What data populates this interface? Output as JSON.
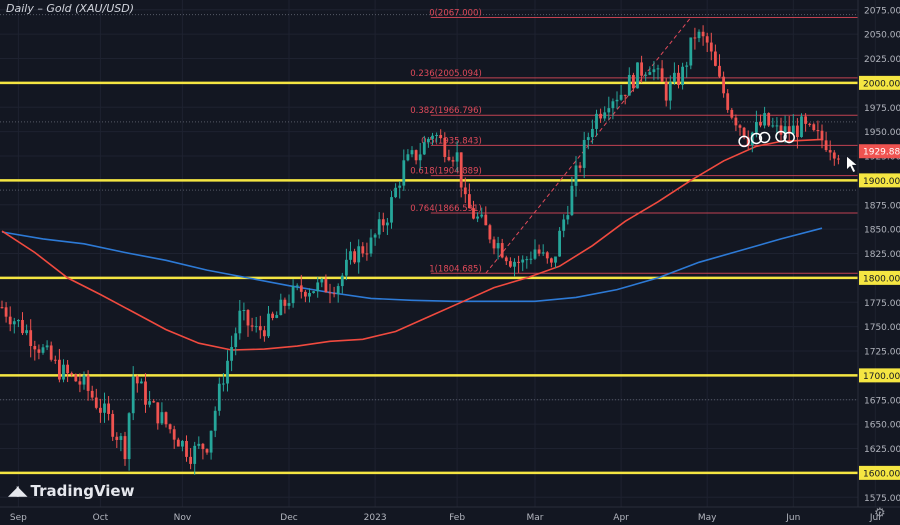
{
  "header": {
    "title": "Daily – Gold (XAU/USD)"
  },
  "branding": {
    "name": "TradingView",
    "icon": "tradingview-logo-icon"
  },
  "settings_icon": "gear-icon",
  "colors": {
    "background": "#131722",
    "up_candle": "#26a69a",
    "down_candle": "#ef5350",
    "yellow_level": "#f5e642",
    "fib": "#e04a5a",
    "ma_red": "#f04a3f",
    "ma_blue": "#2d7ad6",
    "axis_text": "#b2b5be"
  },
  "chart_data": {
    "type": "candlestick",
    "instrument": "Daily – Gold (XAU/USD)",
    "ylim": [
      1565,
      2085
    ],
    "y_ticks": [
      1575,
      1600,
      1625,
      1650,
      1675,
      1700,
      1725,
      1750,
      1775,
      1800,
      1825,
      1850,
      1875,
      1900,
      1925,
      1950,
      1975,
      2000,
      2025,
      2050,
      2075
    ],
    "y_tick_labels": [
      "1575.000",
      "1600.000",
      "1625.000",
      "1650.000",
      "1675.000",
      "1700.000",
      "1725.000",
      "1750.000",
      "1775.000",
      "1800.000",
      "1825.000",
      "1850.000",
      "1875.000",
      "1900.000",
      "1925.000",
      "1950.000",
      "1975.000",
      "2000.000",
      "2025.000",
      "2050.000",
      "2075.000"
    ],
    "x_tick_labels": [
      "Sep",
      "Oct",
      "Nov",
      "Dec",
      "2023",
      "Feb",
      "Mar",
      "Apr",
      "May",
      "Jun",
      "Jul"
    ],
    "x_tick_index": [
      4,
      24,
      44,
      70,
      91,
      111,
      130,
      151,
      172,
      193,
      213
    ],
    "bars_total": 210,
    "current_price": "1929.880",
    "current_price_value": 1929.88,
    "horizontal_levels": [
      2000,
      1900,
      1800,
      1700,
      1600
    ],
    "horizontal_level_labels": [
      "2000.000",
      "1900.000",
      "1800.000",
      "1700.000",
      "1600.000"
    ],
    "fib_levels": [
      {
        "label": "0(2067.000)",
        "value": 2067.0
      },
      {
        "label": "0.236(2005.094)",
        "value": 2005.094
      },
      {
        "label": "0.382(1966.796)",
        "value": 1966.796
      },
      {
        "label": "0.5(1935.843)",
        "value": 1935.843
      },
      {
        "label": "0.618(1904.889)",
        "value": 1904.889
      },
      {
        "label": "0.764(1866.591)",
        "value": 1866.591
      },
      {
        "label": "1(1804.685)",
        "value": 1804.685
      }
    ],
    "fib_anchor": {
      "start": [
        118,
        1804.685
      ],
      "end": [
        168,
        2067.0
      ]
    },
    "ma_red": [
      [
        0,
        1848
      ],
      [
        8,
        1826
      ],
      [
        16,
        1800
      ],
      [
        24,
        1783
      ],
      [
        32,
        1765
      ],
      [
        40,
        1747
      ],
      [
        48,
        1733
      ],
      [
        56,
        1726
      ],
      [
        64,
        1727
      ],
      [
        72,
        1730
      ],
      [
        80,
        1735
      ],
      [
        88,
        1737
      ],
      [
        96,
        1745
      ],
      [
        104,
        1760
      ],
      [
        112,
        1775
      ],
      [
        120,
        1790
      ],
      [
        128,
        1800
      ],
      [
        136,
        1812
      ],
      [
        144,
        1833
      ],
      [
        152,
        1858
      ],
      [
        160,
        1878
      ],
      [
        168,
        1900
      ],
      [
        176,
        1920
      ],
      [
        184,
        1935
      ],
      [
        190,
        1940
      ],
      [
        200,
        1942
      ]
    ],
    "ma_blue": [
      [
        0,
        1847
      ],
      [
        10,
        1840
      ],
      [
        20,
        1835
      ],
      [
        30,
        1826
      ],
      [
        40,
        1818
      ],
      [
        50,
        1808
      ],
      [
        60,
        1800
      ],
      [
        70,
        1792
      ],
      [
        80,
        1785
      ],
      [
        90,
        1779
      ],
      [
        100,
        1777
      ],
      [
        110,
        1776
      ],
      [
        120,
        1776
      ],
      [
        130,
        1776
      ],
      [
        140,
        1780
      ],
      [
        150,
        1788
      ],
      [
        160,
        1800
      ],
      [
        170,
        1816
      ],
      [
        180,
        1828
      ],
      [
        190,
        1840
      ],
      [
        200,
        1851
      ]
    ],
    "path": [
      [
        0,
        1770
      ],
      [
        6,
        1745
      ],
      [
        14,
        1705
      ],
      [
        20,
        1690
      ],
      [
        26,
        1655
      ],
      [
        30,
        1625
      ],
      [
        32,
        1700
      ],
      [
        36,
        1670
      ],
      [
        42,
        1640
      ],
      [
        46,
        1620
      ],
      [
        50,
        1630
      ],
      [
        54,
        1700
      ],
      [
        58,
        1760
      ],
      [
        62,
        1745
      ],
      [
        66,
        1755
      ],
      [
        70,
        1780
      ],
      [
        74,
        1790
      ],
      [
        78,
        1790
      ],
      [
        82,
        1795
      ],
      [
        86,
        1825
      ],
      [
        90,
        1835
      ],
      [
        94,
        1865
      ],
      [
        98,
        1915
      ],
      [
        102,
        1930
      ],
      [
        105,
        1950
      ],
      [
        108,
        1935
      ],
      [
        111,
        1925
      ],
      [
        113,
        1875
      ],
      [
        116,
        1860
      ],
      [
        120,
        1840
      ],
      [
        124,
        1820
      ],
      [
        127,
        1815
      ],
      [
        130,
        1830
      ],
      [
        134,
        1810
      ],
      [
        137,
        1860
      ],
      [
        140,
        1905
      ],
      [
        144,
        1960
      ],
      [
        148,
        1985
      ],
      [
        151,
        1990
      ],
      [
        155,
        2010
      ],
      [
        158,
        2020
      ],
      [
        162,
        1990
      ],
      [
        166,
        2010
      ],
      [
        169,
        2050
      ],
      [
        172,
        2040
      ],
      [
        175,
        2000
      ],
      [
        178,
        1970
      ],
      [
        182,
        1945
      ],
      [
        186,
        1960
      ],
      [
        189,
        1950
      ],
      [
        192,
        1950
      ],
      [
        195,
        1955
      ],
      [
        198,
        1945
      ],
      [
        201,
        1940
      ],
      [
        204,
        1930
      ]
    ],
    "circles": [
      [
        181,
        1940
      ],
      [
        184,
        1943
      ],
      [
        186,
        1944
      ],
      [
        190,
        1945
      ],
      [
        192,
        1944
      ]
    ],
    "arrow_at": [
      206,
      1925
    ]
  }
}
